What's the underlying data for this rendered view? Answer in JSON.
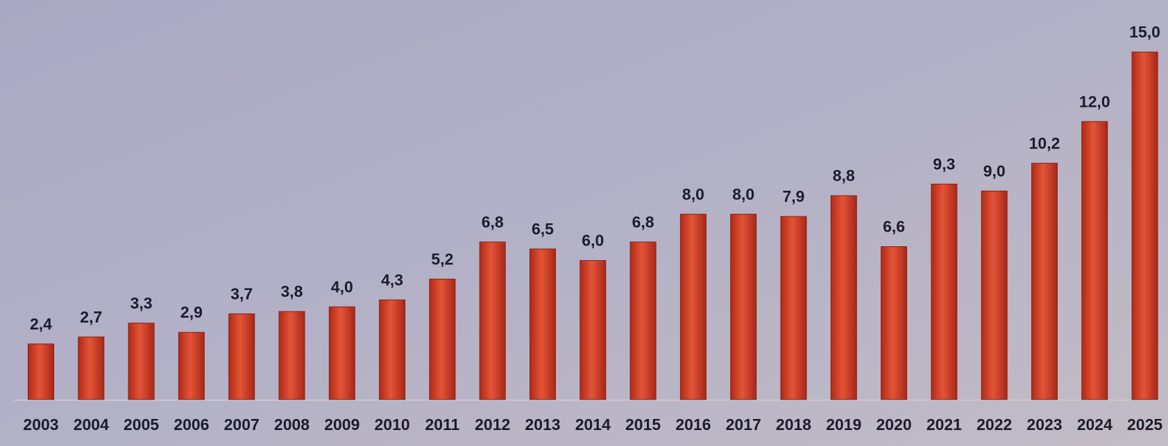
{
  "chart_data": {
    "type": "bar",
    "categories": [
      "2003",
      "2004",
      "2005",
      "2006",
      "2007",
      "2008",
      "2009",
      "2010",
      "2011",
      "2012",
      "2013",
      "2014",
      "2015",
      "2016",
      "2017",
      "2018",
      "2019",
      "2020",
      "2021",
      "2022",
      "2023",
      "2024",
      "2025"
    ],
    "values": [
      2.4,
      2.7,
      3.3,
      2.9,
      3.7,
      3.8,
      4.0,
      4.3,
      5.2,
      6.8,
      6.5,
      6.0,
      6.8,
      8.0,
      8.0,
      7.9,
      8.8,
      6.6,
      9.3,
      9.0,
      10.2,
      12.0,
      15.0
    ],
    "value_labels": [
      "2,4",
      "2,7",
      "3,3",
      "2,9",
      "3,7",
      "3,8",
      "4,0",
      "4,3",
      "5,2",
      "6,8",
      "6,5",
      "6,0",
      "6,8",
      "8,0",
      "8,0",
      "7,9",
      "8,8",
      "6,6",
      "9,3",
      "9,0",
      "10,2",
      "12,0",
      "15,0"
    ],
    "color": "#d9432a"
  }
}
